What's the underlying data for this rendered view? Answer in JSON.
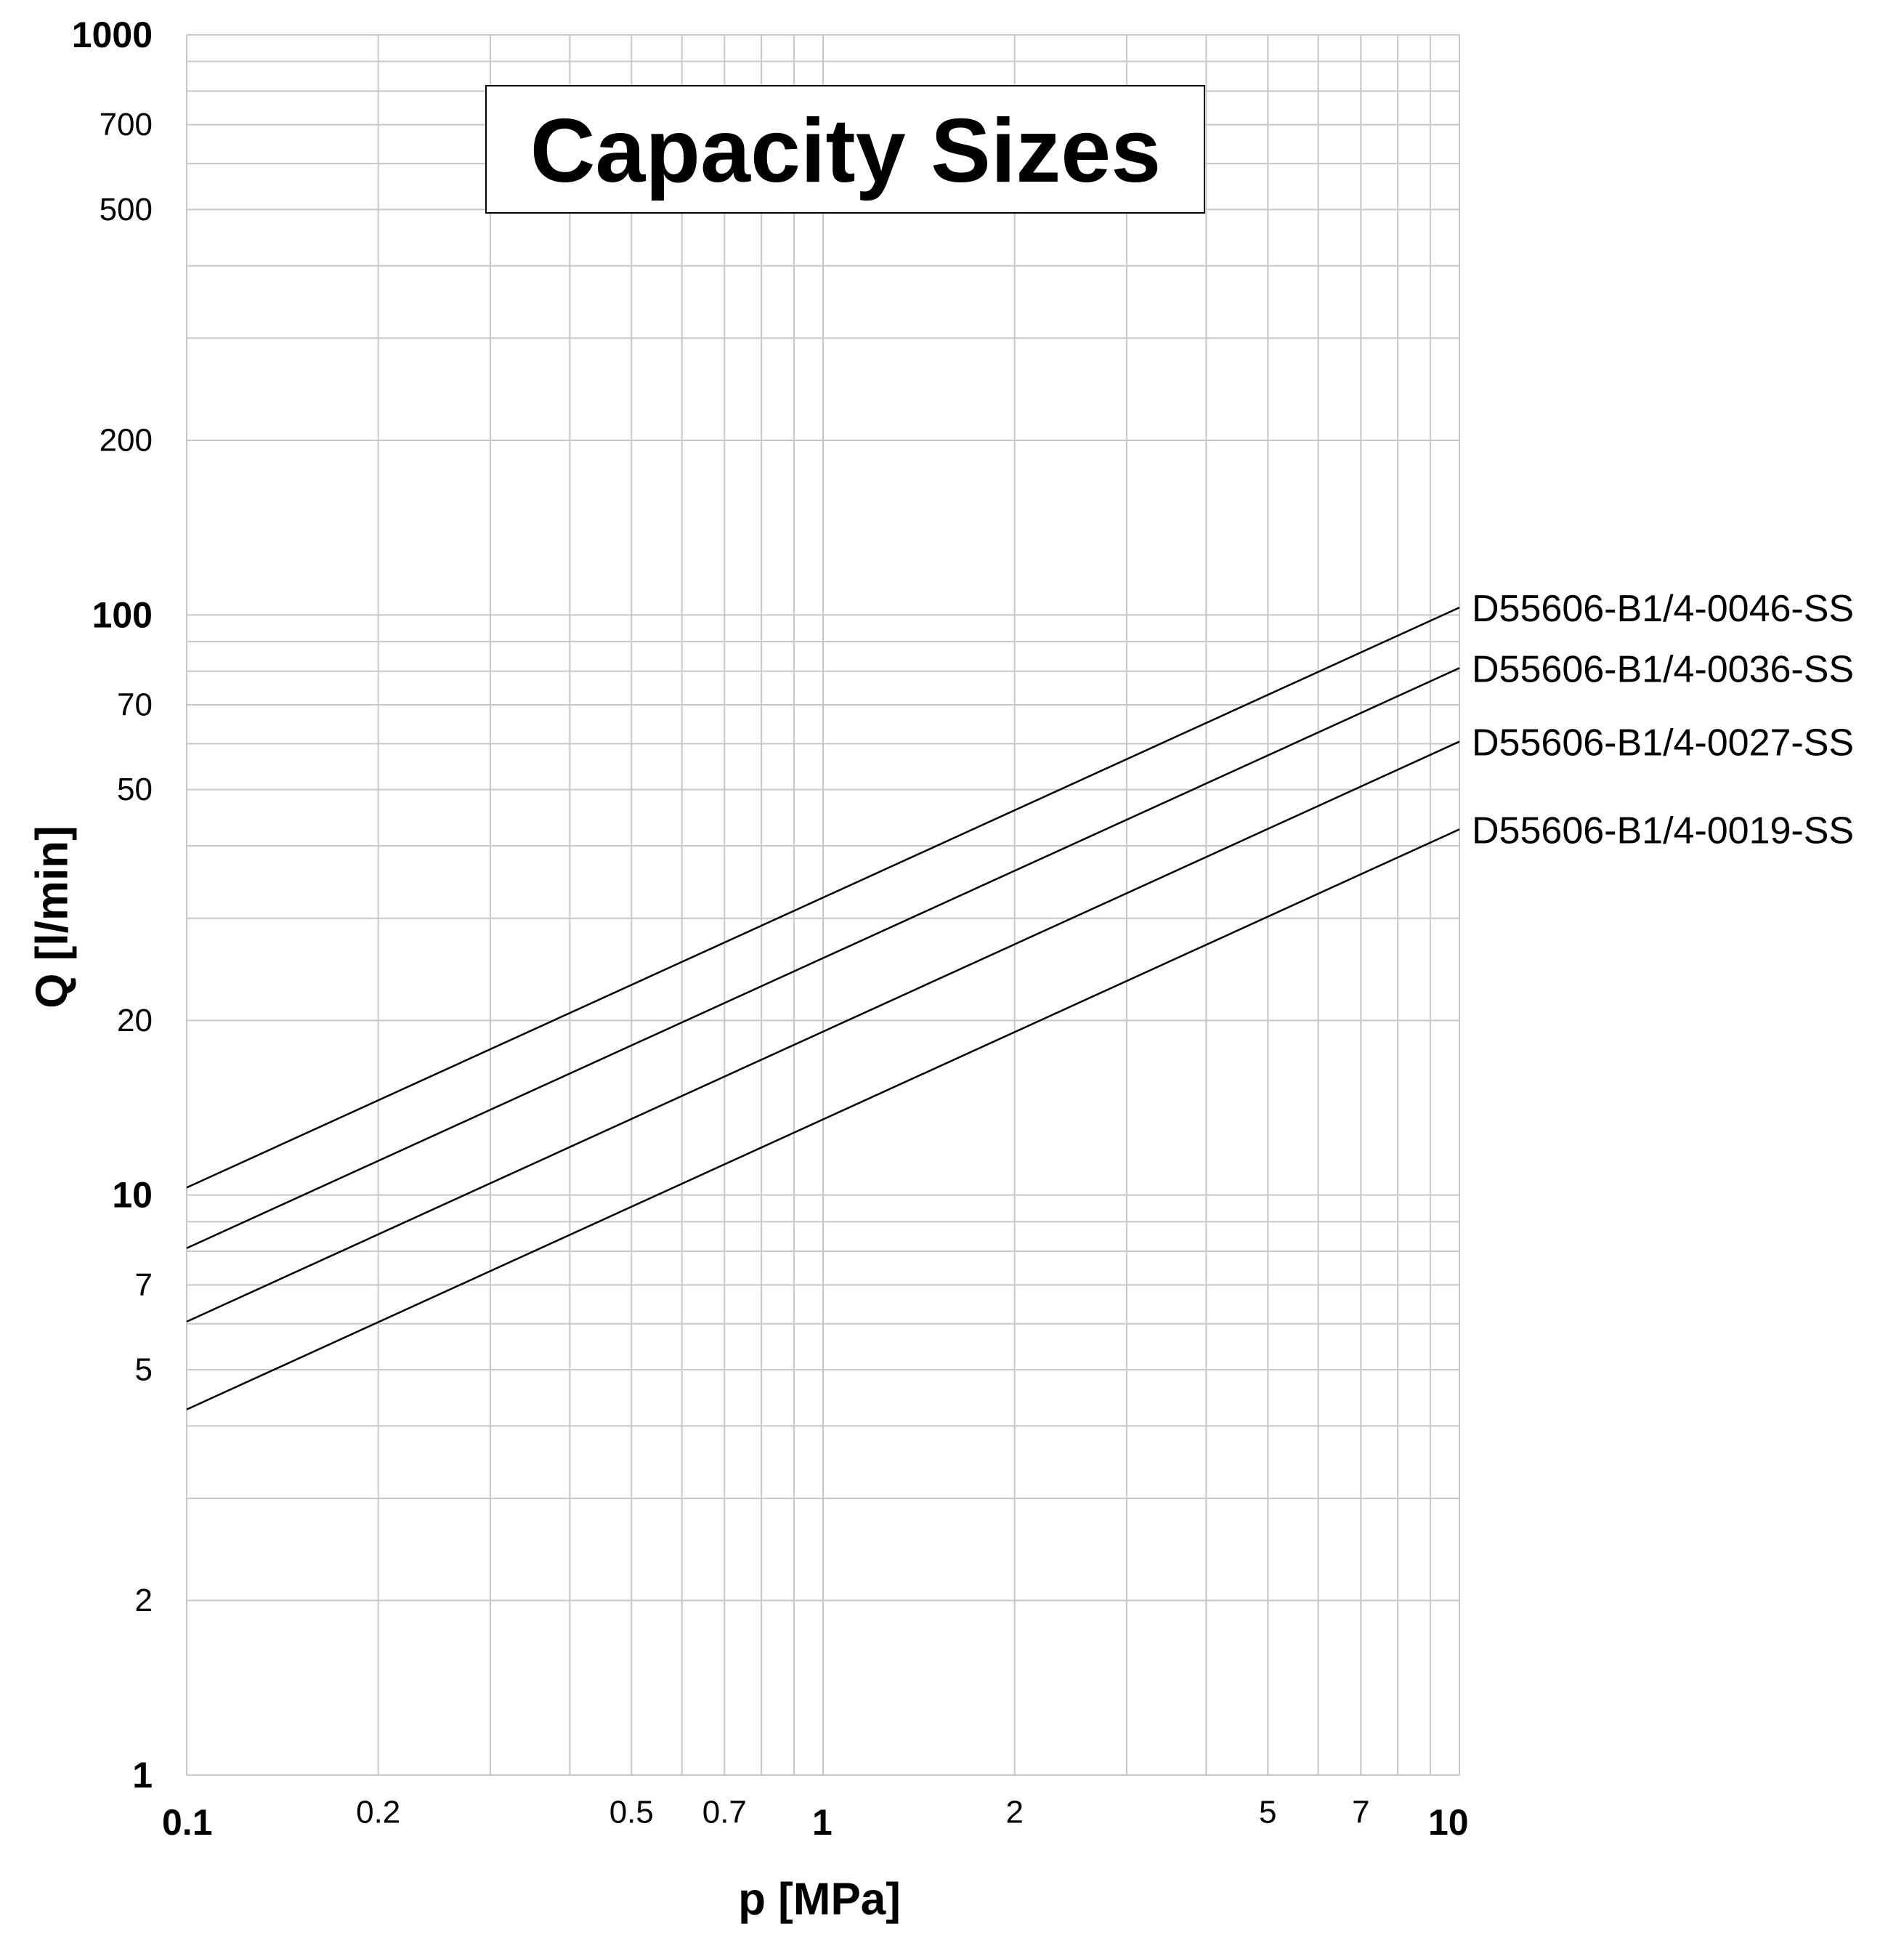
{
  "chart_data": {
    "type": "line",
    "title": "Capacity Sizes",
    "xlabel": "p [MPa]",
    "ylabel": "Q [l/min]",
    "x_scale": "log",
    "y_scale": "log",
    "xlim": [
      0.1,
      10
    ],
    "ylim": [
      1,
      1000
    ],
    "grid": true,
    "x_ticks": [
      {
        "value": 0.1,
        "label": "0.1",
        "bold": true
      },
      {
        "value": 0.2,
        "label": "0.2",
        "bold": false
      },
      {
        "value": 0.5,
        "label": "0.5",
        "bold": false
      },
      {
        "value": 0.7,
        "label": "0.7",
        "bold": false
      },
      {
        "value": 1,
        "label": "1",
        "bold": true
      },
      {
        "value": 2,
        "label": "2",
        "bold": false
      },
      {
        "value": 5,
        "label": "5",
        "bold": false
      },
      {
        "value": 7,
        "label": "7",
        "bold": false
      },
      {
        "value": 10,
        "label": "10",
        "bold": true
      }
    ],
    "y_ticks": [
      {
        "value": 1,
        "label": "1",
        "bold": true
      },
      {
        "value": 2,
        "label": "2",
        "bold": false
      },
      {
        "value": 5,
        "label": "5",
        "bold": false
      },
      {
        "value": 7,
        "label": "7",
        "bold": false
      },
      {
        "value": 10,
        "label": "10",
        "bold": true
      },
      {
        "value": 20,
        "label": "20",
        "bold": false
      },
      {
        "value": 50,
        "label": "50",
        "bold": false
      },
      {
        "value": 70,
        "label": "70",
        "bold": false
      },
      {
        "value": 100,
        "label": "100",
        "bold": true
      },
      {
        "value": 200,
        "label": "200",
        "bold": false
      },
      {
        "value": 500,
        "label": "500",
        "bold": false
      },
      {
        "value": 700,
        "label": "700",
        "bold": false
      },
      {
        "value": 1000,
        "label": "1000",
        "bold": true
      }
    ],
    "x_grid": [
      0.1,
      0.2,
      0.3,
      0.4,
      0.5,
      0.6,
      0.7,
      0.8,
      0.9,
      1,
      2,
      3,
      4,
      5,
      6,
      7,
      8,
      9,
      10
    ],
    "y_grid": [
      1,
      2,
      3,
      4,
      5,
      6,
      7,
      8,
      9,
      10,
      20,
      30,
      40,
      50,
      60,
      70,
      80,
      90,
      100,
      200,
      300,
      400,
      500,
      600,
      700,
      800,
      900,
      1000
    ],
    "series": [
      {
        "name": "D55606-B1/4-0046-SS",
        "x": [
          0.1,
          10
        ],
        "y": [
          10.3,
          103
        ]
      },
      {
        "name": "D55606-B1/4-0036-SS",
        "x": [
          0.1,
          10
        ],
        "y": [
          8.1,
          81
        ]
      },
      {
        "name": "D55606-B1/4-0027-SS",
        "x": [
          0.1,
          10
        ],
        "y": [
          6.05,
          60.5
        ]
      },
      {
        "name": "D55606-B1/4-0019-SS",
        "x": [
          0.1,
          10
        ],
        "y": [
          4.27,
          42.7
        ]
      }
    ]
  },
  "colors": {
    "grid": "#c8c8c8",
    "line": "#000000",
    "text": "#000000",
    "background": "#ffffff"
  }
}
